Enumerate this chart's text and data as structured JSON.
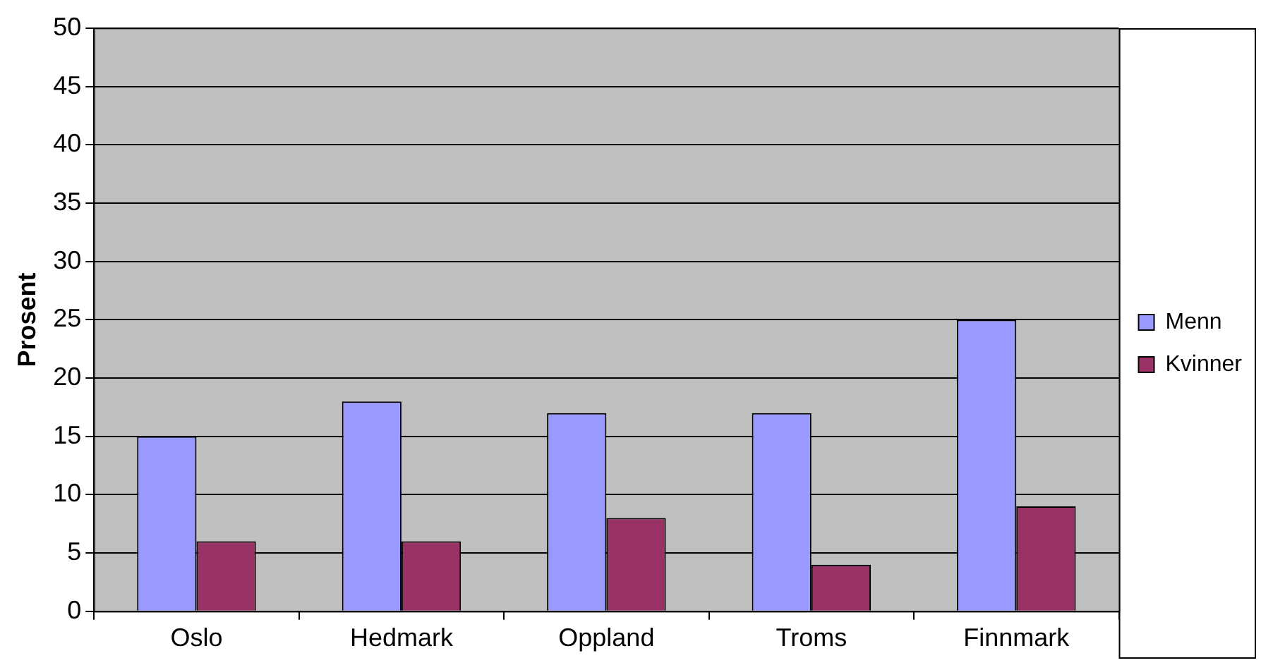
{
  "chart_data": {
    "type": "bar",
    "ylabel": "Prosent",
    "categories": [
      "Oslo",
      "Hedmark",
      "Oppland",
      "Troms",
      "Finnmark"
    ],
    "series": [
      {
        "name": "Menn",
        "color": "#9999ff",
        "values": [
          15,
          18,
          17,
          17,
          25
        ]
      },
      {
        "name": "Kvinner",
        "color": "#993366",
        "values": [
          6,
          6,
          8,
          4,
          9
        ]
      }
    ],
    "ylim": [
      0,
      50
    ],
    "yticks": [
      0,
      5,
      10,
      15,
      20,
      25,
      30,
      35,
      40,
      45,
      50
    ],
    "grid": "y",
    "legend": "right"
  }
}
